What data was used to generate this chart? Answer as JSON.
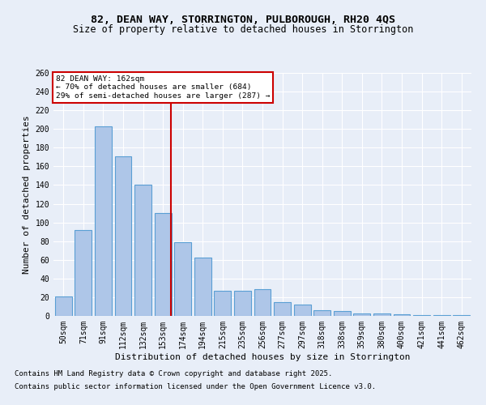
{
  "title1": "82, DEAN WAY, STORRINGTON, PULBOROUGH, RH20 4QS",
  "title2": "Size of property relative to detached houses in Storrington",
  "xlabel": "Distribution of detached houses by size in Storrington",
  "ylabel": "Number of detached properties",
  "categories": [
    "50sqm",
    "71sqm",
    "91sqm",
    "112sqm",
    "132sqm",
    "153sqm",
    "174sqm",
    "194sqm",
    "215sqm",
    "235sqm",
    "256sqm",
    "277sqm",
    "297sqm",
    "318sqm",
    "338sqm",
    "359sqm",
    "380sqm",
    "400sqm",
    "421sqm",
    "441sqm",
    "462sqm"
  ],
  "values": [
    21,
    92,
    203,
    171,
    140,
    110,
    79,
    62,
    27,
    27,
    29,
    15,
    12,
    6,
    5,
    3,
    3,
    2,
    1,
    1,
    1
  ],
  "bar_color": "#aec6e8",
  "bar_edge_color": "#5a9fd4",
  "annotation_text_line1": "82 DEAN WAY: 162sqm",
  "annotation_text_line2": "← 70% of detached houses are smaller (684)",
  "annotation_text_line3": "29% of semi-detached houses are larger (287) →",
  "annotation_box_color": "#ffffff",
  "annotation_box_edge_color": "#cc0000",
  "vline_color": "#cc0000",
  "bg_color": "#e8eef8",
  "plot_bg_color": "#e8eef8",
  "grid_color": "#ffffff",
  "ylim": [
    0,
    260
  ],
  "yticks": [
    0,
    20,
    40,
    60,
    80,
    100,
    120,
    140,
    160,
    180,
    200,
    220,
    240,
    260
  ],
  "footnote1": "Contains HM Land Registry data © Crown copyright and database right 2025.",
  "footnote2": "Contains public sector information licensed under the Open Government Licence v3.0.",
  "title_fontsize": 9.5,
  "subtitle_fontsize": 8.5,
  "tick_fontsize": 7,
  "label_fontsize": 8,
  "footnote_fontsize": 6.5
}
